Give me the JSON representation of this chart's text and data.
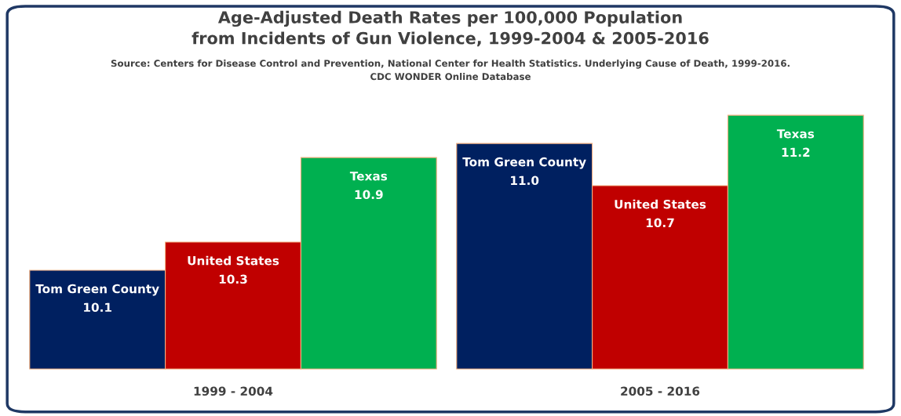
{
  "chart_data": {
    "type": "bar",
    "title": "Age-Adjusted Death Rates per 100,000 Population\nfrom Incidents of Gun Violence, 1999-2004 & 2005-2016",
    "subtitle": "Source: Centers for Disease Control and Prevention, National Center for Health Statistics. Underlying Cause of Death, 1999-2016.\nCDC WONDER Online Database",
    "categories": [
      "1999 - 2004",
      "2005 - 2016"
    ],
    "series": [
      {
        "name": "Tom Green County",
        "color": "#002060",
        "values": [
          10.1,
          11.0
        ],
        "value_labels": [
          "10.1",
          "11.0"
        ]
      },
      {
        "name": "United States",
        "color": "#c00000",
        "values": [
          10.3,
          10.7
        ],
        "value_labels": [
          "10.3",
          "10.7"
        ]
      },
      {
        "name": "Texas",
        "color": "#00b050",
        "values": [
          10.9,
          11.2
        ],
        "value_labels": [
          "10.9",
          "11.2"
        ]
      }
    ],
    "ylim": [
      9.4,
      11.2
    ],
    "tick_labels": "x",
    "legend": false,
    "grid": false
  }
}
